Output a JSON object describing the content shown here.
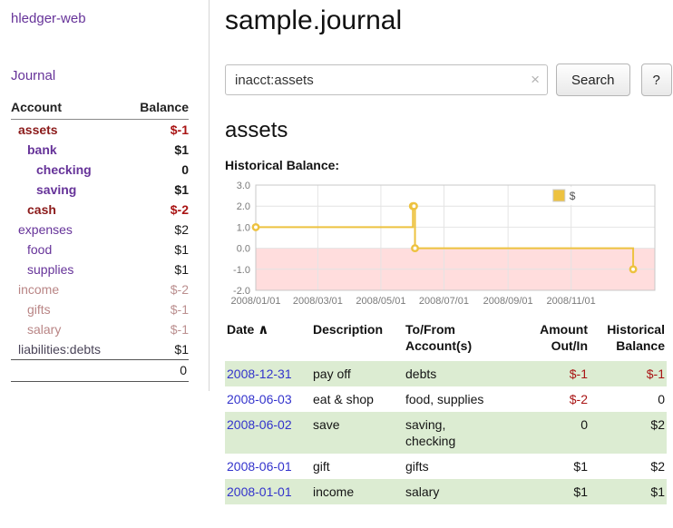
{
  "app": {
    "title": "hledger-web"
  },
  "sidebar": {
    "journal_label": "Journal",
    "account_header": "Account",
    "balance_header": "Balance",
    "accounts": [
      {
        "label": "assets",
        "balance": "$-1"
      },
      {
        "label": "bank",
        "balance": "$1"
      },
      {
        "label": "checking",
        "balance": "0"
      },
      {
        "label": "saving",
        "balance": "$1"
      },
      {
        "label": "cash",
        "balance": "$-2"
      },
      {
        "label": "expenses",
        "balance": "$2"
      },
      {
        "label": "food",
        "balance": "$1"
      },
      {
        "label": "supplies",
        "balance": "$1"
      },
      {
        "label": "income",
        "balance": "$-2"
      },
      {
        "label": "gifts",
        "balance": "$-1"
      },
      {
        "label": "salary",
        "balance": "$-1"
      },
      {
        "label": "liabilities:debts",
        "balance": "$1"
      }
    ],
    "total_balance": "0"
  },
  "main": {
    "title": "sample.journal",
    "search": {
      "value": "inacct:assets",
      "clear_icon": "×",
      "search_button": "Search",
      "help_button": "?"
    },
    "section_title": "assets"
  },
  "chart_data": {
    "type": "line",
    "step": true,
    "title": "Historical Balance:",
    "series": [
      {
        "name": "$",
        "color": "#edc240",
        "x_dates": [
          "2008-01-01",
          "2008-06-01",
          "2008-06-02",
          "2008-06-03",
          "2008-12-31"
        ],
        "x_days": [
          0,
          152,
          153,
          154,
          365
        ],
        "y": [
          1,
          2,
          2,
          0,
          -1
        ]
      }
    ],
    "x_tick_days": [
      0,
      60,
      121,
      182,
      244,
      305
    ],
    "x_tick_labels": [
      "2008/01/01",
      "2008/03/01",
      "2008/05/01",
      "2008/07/01",
      "2008/09/01",
      "2008/11/01"
    ],
    "y_tick_labels": [
      "3.0",
      "2.0",
      "1.0",
      "0.0",
      "-1.0",
      "-2.0"
    ],
    "ylim": [
      -2,
      3
    ],
    "xlim_days": [
      0,
      386
    ],
    "grid": true,
    "legend_position": "top-right",
    "negative_region_color": "#ffdddd"
  },
  "register": {
    "headers": {
      "date": "Date",
      "sort_icon": "∧",
      "description": "Description",
      "accounts": "To/From Account(s)",
      "amount": "Amount Out/In",
      "balance": "Historical Balance"
    },
    "rows": [
      {
        "date": "2008-12-31",
        "description": "pay off",
        "accounts": "debts",
        "amount": "$-1",
        "balance": "$-1"
      },
      {
        "date": "2008-06-03",
        "description": "eat & shop",
        "accounts": "food, supplies",
        "amount": "$-2",
        "balance": "0"
      },
      {
        "date": "2008-06-02",
        "description": "save",
        "accounts": "saving,\nchecking",
        "amount": "0",
        "balance": "$2"
      },
      {
        "date": "2008-06-01",
        "description": "gift",
        "accounts": "gifts",
        "amount": "$1",
        "balance": "$2"
      },
      {
        "date": "2008-01-01",
        "description": "income",
        "accounts": "salary",
        "amount": "$1",
        "balance": "$1"
      }
    ]
  },
  "colors": {
    "link_purple": "#663399",
    "negative_red": "#a91414",
    "account_maroon": "#8b1a1a",
    "dimmed_negative": "#b98585",
    "date_link_blue": "#3333cc",
    "row_stripe_green": "#dcecd2",
    "chart_line_gold": "#edc240",
    "chart_negative_region": "#ffdddd"
  }
}
